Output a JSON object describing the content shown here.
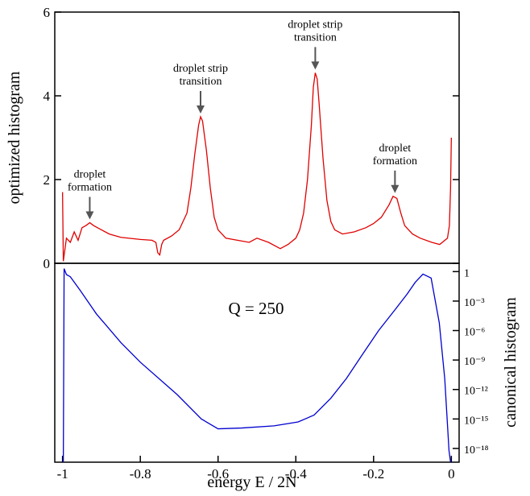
{
  "chart_data": [
    {
      "type": "line",
      "ylabel": "optimized histogram",
      "xlim": [
        -1.02,
        0.02
      ],
      "ylim": [
        0,
        6
      ],
      "yticks": [
        0,
        2,
        4,
        6
      ],
      "series": [
        {
          "color": "#e00000",
          "x": [
            -1.0,
            -0.998,
            -0.99,
            -0.98,
            -0.97,
            -0.96,
            -0.95,
            -0.94,
            -0.93,
            -0.92,
            -0.9,
            -0.88,
            -0.85,
            -0.8,
            -0.77,
            -0.76,
            -0.755,
            -0.75,
            -0.745,
            -0.74,
            -0.72,
            -0.7,
            -0.68,
            -0.67,
            -0.66,
            -0.65,
            -0.645,
            -0.64,
            -0.63,
            -0.62,
            -0.61,
            -0.6,
            -0.58,
            -0.55,
            -0.52,
            -0.5,
            -0.47,
            -0.45,
            -0.44,
            -0.42,
            -0.4,
            -0.39,
            -0.38,
            -0.37,
            -0.36,
            -0.355,
            -0.35,
            -0.345,
            -0.34,
            -0.33,
            -0.32,
            -0.31,
            -0.3,
            -0.28,
            -0.25,
            -0.22,
            -0.2,
            -0.18,
            -0.16,
            -0.15,
            -0.14,
            -0.13,
            -0.12,
            -0.1,
            -0.08,
            -0.05,
            -0.03,
            -0.01,
            -0.005,
            -0.002,
            0.0
          ],
          "values": [
            1.7,
            0.05,
            0.6,
            0.5,
            0.75,
            0.55,
            0.85,
            0.9,
            0.97,
            0.9,
            0.8,
            0.7,
            0.62,
            0.57,
            0.55,
            0.5,
            0.25,
            0.2,
            0.45,
            0.55,
            0.65,
            0.8,
            1.2,
            1.8,
            2.6,
            3.3,
            3.5,
            3.4,
            2.7,
            1.8,
            1.1,
            0.8,
            0.6,
            0.55,
            0.5,
            0.6,
            0.5,
            0.4,
            0.35,
            0.45,
            0.6,
            0.8,
            1.2,
            2.0,
            3.3,
            4.2,
            4.55,
            4.4,
            3.8,
            2.5,
            1.5,
            1.0,
            0.8,
            0.7,
            0.75,
            0.85,
            0.95,
            1.1,
            1.4,
            1.6,
            1.55,
            1.2,
            0.9,
            0.7,
            0.6,
            0.5,
            0.45,
            0.6,
            0.9,
            1.8,
            3.0
          ]
        }
      ],
      "annotations": [
        {
          "text": [
            "droplet",
            "formation"
          ],
          "x": -0.93,
          "y": 0.97
        },
        {
          "text": [
            "droplet strip",
            "transition"
          ],
          "x": -0.645,
          "y": 3.5
        },
        {
          "text": [
            "droplet strip",
            "transition"
          ],
          "x": -0.35,
          "y": 4.55
        },
        {
          "text": [
            "droplet",
            "formation"
          ],
          "x": -0.145,
          "y": 1.6
        }
      ]
    },
    {
      "type": "line",
      "y2label": "canonical histogram",
      "xlabel": "energy   E / 2N",
      "annotation": "Q = 250",
      "log_y2": true,
      "xlim": [
        -1.02,
        0.02
      ],
      "xticks": [
        -1,
        -0.8,
        -0.6,
        -0.4,
        -0.2,
        0
      ],
      "y2lim": [
        4e-20,
        7
      ],
      "y2ticks": [
        1,
        {
          "value": 0.001,
          "label": "10⁻³"
        },
        {
          "value": 1e-06,
          "label": "10⁻⁶"
        },
        {
          "value": 1e-09,
          "label": "10⁻⁹"
        },
        {
          "value": 1e-12,
          "label": "10⁻¹²"
        },
        {
          "value": 1e-15,
          "label": "10⁻¹⁵"
        },
        {
          "value": 1e-18,
          "label": "10⁻¹⁸"
        }
      ],
      "series": [
        {
          "color": "#0000d0",
          "axis": "y2",
          "x": [
            -0.998,
            -0.996,
            -0.99,
            -0.98,
            -0.955,
            -0.913,
            -0.85,
            -0.8,
            -0.705,
            -0.643,
            -0.6,
            -0.54,
            -0.456,
            -0.394,
            -0.353,
            -0.31,
            -0.27,
            -0.228,
            -0.187,
            -0.145,
            -0.114,
            -0.093,
            -0.073,
            -0.052,
            -0.031,
            -0.017,
            -0.006,
            -0.002
          ],
          "values": [
            4e-20,
            2,
            0.5,
            0.3,
            0.013,
            5e-05,
            6e-08,
            6e-10,
            3e-13,
            1e-15,
            1e-16,
            1.2e-16,
            2e-16,
            5e-16,
            2.5e-15,
            1.3e-13,
            1.3e-11,
            4e-09,
            1e-06,
            0.00013,
            0.005,
            0.08,
            0.56,
            0.22,
            6e-06,
            1.3e-11,
            6e-19,
            4e-20
          ]
        }
      ]
    }
  ]
}
